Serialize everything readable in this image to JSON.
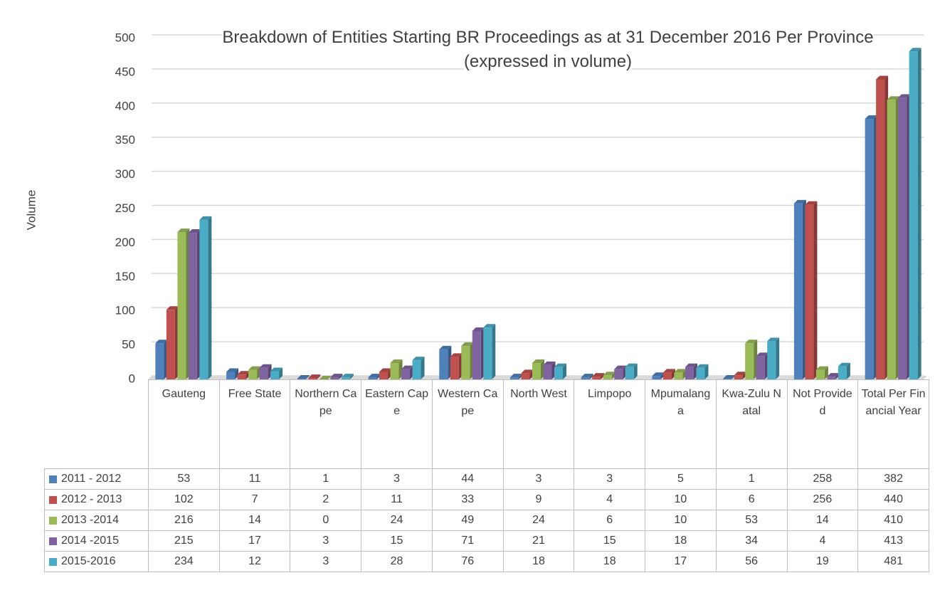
{
  "chart_data": {
    "type": "bar",
    "title": "Breakdown of Entities Starting BR Proceedings as at 31 December 2016 Per Province (expressed in volume)",
    "y_label": "Volume",
    "categories": [
      "Gauteng",
      "Free State",
      "Northern Cape",
      "Eastern Cape",
      "Western Cape",
      "North West",
      "Limpopo",
      "Mpumalanga",
      "Kwa-Zulu Natal",
      "Not Provided",
      "Total Per Financial Year"
    ],
    "series": [
      {
        "name": "2011 - 2012",
        "color": "#4f81bd",
        "values": [
          53,
          11,
          1,
          3,
          44,
          3,
          3,
          5,
          1,
          258,
          382
        ]
      },
      {
        "name": "2012 - 2013",
        "color": "#c0504d",
        "values": [
          102,
          7,
          2,
          11,
          33,
          9,
          4,
          10,
          6,
          256,
          440
        ]
      },
      {
        "name": "2013 -2014",
        "color": "#9bbb59",
        "values": [
          216,
          14,
          0,
          24,
          49,
          24,
          6,
          10,
          53,
          14,
          410
        ]
      },
      {
        "name": "2014 -2015",
        "color": "#8064a2",
        "values": [
          215,
          17,
          3,
          15,
          71,
          21,
          15,
          18,
          34,
          4,
          413
        ]
      },
      {
        "name": "2015-2016",
        "color": "#4bacc6",
        "values": [
          234,
          12,
          3,
          28,
          76,
          18,
          18,
          17,
          56,
          19,
          481
        ]
      }
    ],
    "ylim": [
      0,
      500
    ],
    "yticks": [
      0,
      50,
      100,
      150,
      200,
      250,
      300,
      350,
      400,
      450,
      500
    ],
    "grid": true
  }
}
